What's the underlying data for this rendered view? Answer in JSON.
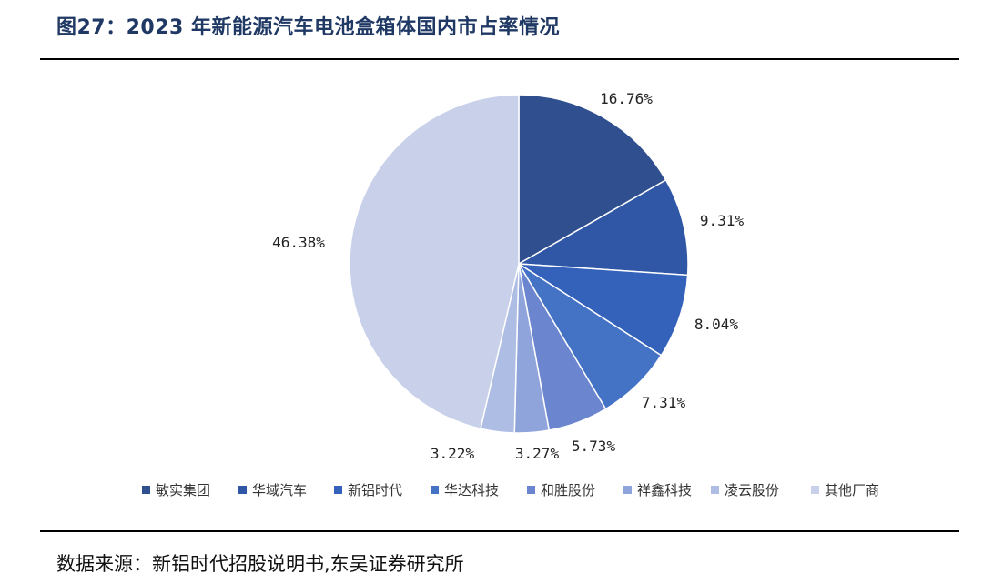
{
  "header": {
    "title": "图27：2023 年新能源汽车电池盒箱体国内市占率情况"
  },
  "footer": {
    "source": "数据来源：新铝时代招股说明书,东吴证券研究所"
  },
  "chart_data": {
    "type": "pie",
    "categories": [
      "敏实集团",
      "华域汽车",
      "新铝时代",
      "华达科技",
      "和胜股份",
      "祥鑫科技",
      "凌云股份",
      "其他厂商"
    ],
    "values": [
      16.76,
      9.31,
      8.04,
      7.31,
      5.73,
      3.27,
      3.22,
      46.38
    ],
    "labels": [
      "16.76%",
      "9.31%",
      "8.04%",
      "7.31%",
      "5.73%",
      "3.27%",
      "3.22%",
      "46.38%"
    ],
    "colors": [
      "#2f4f8f",
      "#2f57a6",
      "#3462bb",
      "#4472c4",
      "#6b86cf",
      "#8ea4da",
      "#adbde4",
      "#c9d1ea"
    ],
    "legend_position": "bottom",
    "start_angle": "12 o'clock",
    "direction": "clockwise"
  }
}
